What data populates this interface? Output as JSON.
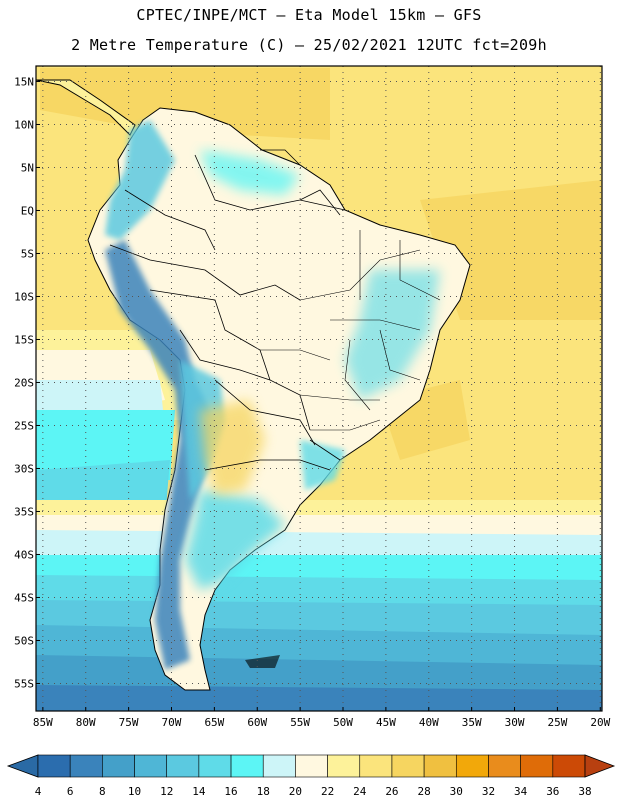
{
  "header": {
    "line1": "CPTEC/INPE/MCT –  Eta Model 15km – GFS",
    "line2": "2 Metre Temperature (C) – 25/02/2021 12UTC fct=209h"
  },
  "map": {
    "lat_labels": [
      "15N",
      "10N",
      "5N",
      "EQ",
      "5S",
      "10S",
      "15S",
      "20S",
      "25S",
      "30S",
      "35S",
      "40S",
      "45S",
      "50S",
      "55S"
    ],
    "lon_labels": [
      "85W",
      "80W",
      "75W",
      "70W",
      "65W",
      "60W",
      "55W",
      "50W",
      "45W",
      "40W",
      "35W",
      "30W",
      "25W",
      "20W"
    ],
    "lat_values": [
      15,
      10,
      5,
      0,
      -5,
      -10,
      -15,
      -20,
      -25,
      -30,
      -35,
      -40,
      -45,
      -50,
      -55
    ],
    "lon_values": [
      -85,
      -80,
      -75,
      -70,
      -65,
      -60,
      -55,
      -50,
      -45,
      -40,
      -35,
      -30,
      -25,
      -20
    ],
    "extent": {
      "lon_min": -85.8,
      "lon_max": -19.8,
      "lat_min": -58.2,
      "lat_max": 16.8
    }
  },
  "colorbar": {
    "labels": [
      "4",
      "6",
      "8",
      "10",
      "12",
      "14",
      "16",
      "18",
      "20",
      "22",
      "24",
      "26",
      "28",
      "30",
      "32",
      "34",
      "36",
      "38"
    ],
    "colors": [
      "#2b6dae",
      "#3a83bb",
      "#44a0c9",
      "#4fb6d6",
      "#5bc9e0",
      "#5fdbe8",
      "#5cf5f5",
      "#cdf5f8",
      "#fff8e0",
      "#fdf29a",
      "#fbe47c",
      "#f6d560",
      "#f0c040",
      "#f2a80a",
      "#e98c1c",
      "#df6c08",
      "#cc4a06"
    ],
    "low_color": "#2a6aa5",
    "high_color": "#b84010"
  }
}
